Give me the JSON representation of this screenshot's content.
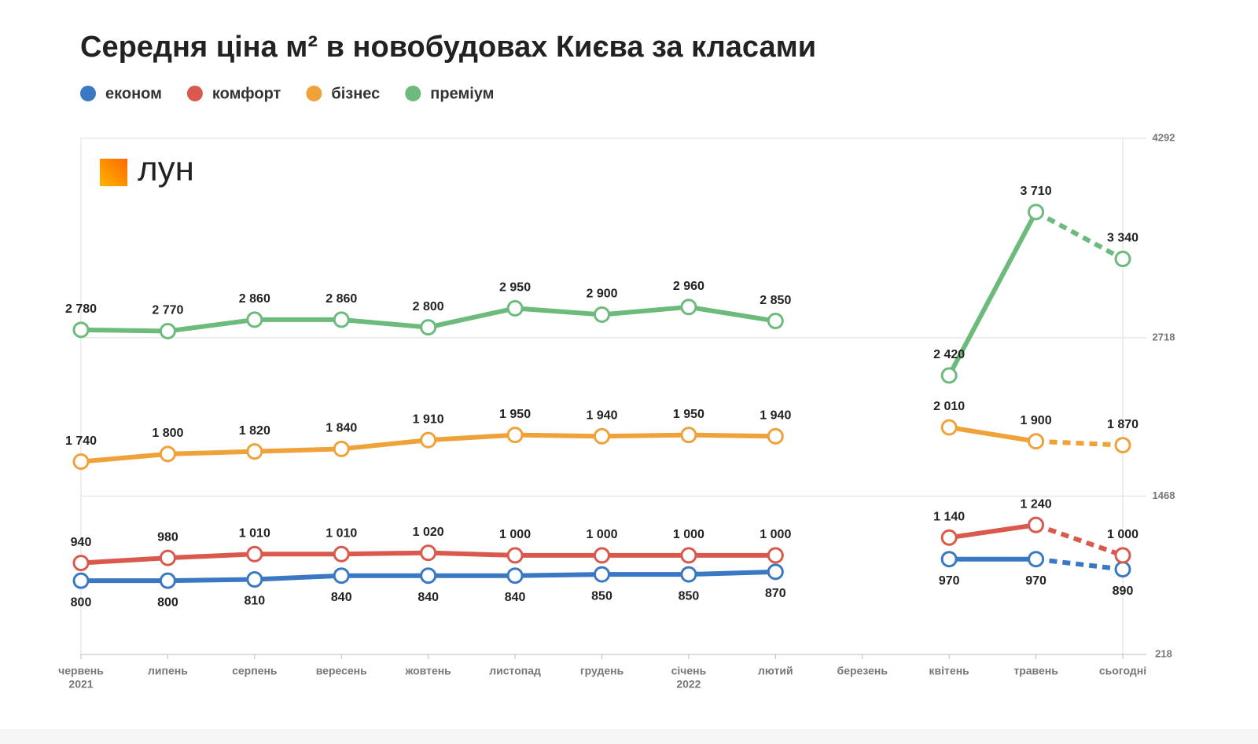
{
  "chart_data": {
    "type": "line",
    "title": "Середня ціна м² в новобудовах Києва за класами",
    "logo": "лун",
    "categories": [
      "червень",
      "липень",
      "серпень",
      "вересень",
      "жовтень",
      "листопад",
      "грудень",
      "січень",
      "лютий",
      "березень",
      "квітень",
      "травень",
      "сьогодні"
    ],
    "year_labels": [
      "2021",
      null,
      null,
      null,
      null,
      null,
      null,
      "2022",
      null,
      null,
      null,
      null,
      null
    ],
    "ylim": [
      218,
      4292
    ],
    "yticks": [
      218,
      1468,
      2718,
      4292
    ],
    "grid": true,
    "dashed_last_segment": true,
    "series": [
      {
        "name": "економ",
        "color": "#3a78c3",
        "label_position": "below",
        "values": [
          800,
          800,
          810,
          840,
          840,
          840,
          850,
          850,
          870,
          null,
          970,
          970,
          890
        ],
        "value_labels": [
          "800",
          "800",
          "810",
          "840",
          "840",
          "840",
          "850",
          "850",
          "870",
          null,
          "970",
          "970",
          "890"
        ]
      },
      {
        "name": "комфорт",
        "color": "#d9594c",
        "label_position": "above",
        "values": [
          940,
          980,
          1010,
          1010,
          1020,
          1000,
          1000,
          1000,
          1000,
          null,
          1140,
          1240,
          1000
        ],
        "value_labels": [
          "940",
          "980",
          "1 010",
          "1 010",
          "1 020",
          "1 000",
          "1 000",
          "1 000",
          "1 000",
          null,
          "1 140",
          "1 240",
          "1 000"
        ]
      },
      {
        "name": "бізнес",
        "color": "#f0a23a",
        "label_position": "above",
        "values": [
          1740,
          1800,
          1820,
          1840,
          1910,
          1950,
          1940,
          1950,
          1940,
          null,
          2010,
          1900,
          1870
        ],
        "value_labels": [
          "1 740",
          "1 800",
          "1 820",
          "1 840",
          "1 910",
          "1 950",
          "1 940",
          "1 950",
          "1 940",
          null,
          "2 010",
          "1 900",
          "1 870"
        ]
      },
      {
        "name": "преміум",
        "color": "#6dbb7c",
        "label_position": "above",
        "values": [
          2780,
          2770,
          2860,
          2860,
          2800,
          2950,
          2900,
          2960,
          2850,
          null,
          2420,
          3710,
          3340
        ],
        "value_labels": [
          "2 780",
          "2 770",
          "2 860",
          "2 860",
          "2 800",
          "2 950",
          "2 900",
          "2 960",
          "2 850",
          null,
          "2 420",
          "3 710",
          "3 340"
        ]
      }
    ]
  }
}
